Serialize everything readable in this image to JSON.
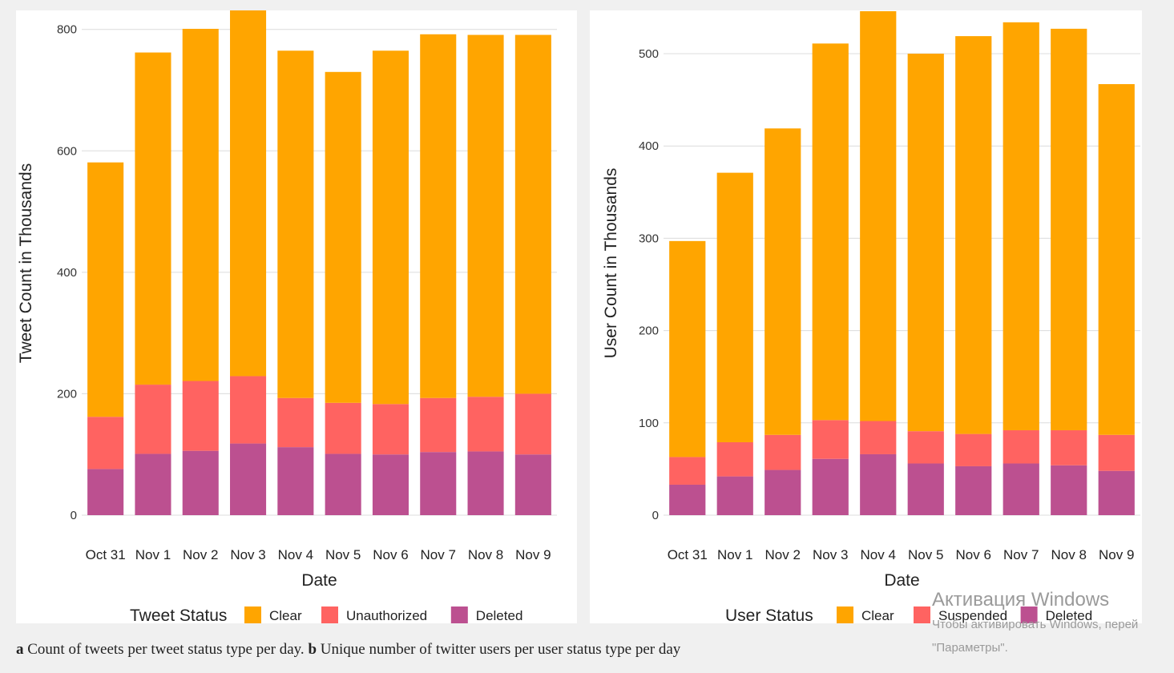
{
  "colors": {
    "clear": "#FFA500",
    "red": "#FF6361",
    "deleted": "#BC5090"
  },
  "caption": {
    "a_letter": "a",
    "a_text": " Count of tweets per tweet status type per day. ",
    "b_letter": "b",
    "b_text": " Unique number of twitter users per user status type per day"
  },
  "watermark": {
    "title": "Активация Windows",
    "line1": "Чтобы активировать Windows, перей",
    "line2": "\"Параметры\"."
  },
  "chart_data": [
    {
      "type": "bar",
      "stacked": true,
      "xlabel": "Date",
      "ylabel": "Tweet Count in Thousands",
      "ylim": [
        0,
        830
      ],
      "yticks": [
        0,
        200,
        400,
        600,
        800
      ],
      "grid": true,
      "legend_position": "bottom",
      "legend_title": "Tweet Status",
      "categories": [
        "Oct 31",
        "Nov 1",
        "Nov 2",
        "Nov 3",
        "Nov 4",
        "Nov 5",
        "Nov 6",
        "Nov 7",
        "Nov 8",
        "Nov 9"
      ],
      "series": [
        {
          "name": "Clear",
          "color_key": "clear",
          "values": [
            419,
            547,
            580,
            604,
            572,
            545,
            582,
            599,
            596,
            591
          ]
        },
        {
          "name": "Unauthorized",
          "color_key": "red",
          "values": [
            86,
            114,
            115,
            111,
            81,
            84,
            83,
            89,
            90,
            100
          ]
        },
        {
          "name": "Deleted",
          "color_key": "deleted",
          "values": [
            76,
            101,
            106,
            118,
            112,
            101,
            100,
            104,
            105,
            100
          ]
        }
      ]
    },
    {
      "type": "bar",
      "stacked": true,
      "xlabel": "Date",
      "ylabel": "User Count in Thousands",
      "ylim": [
        0,
        546
      ],
      "yticks": [
        0,
        100,
        200,
        300,
        400,
        500
      ],
      "grid": true,
      "legend_position": "bottom",
      "legend_title": "User Status",
      "categories": [
        "Oct 31",
        "Nov 1",
        "Nov 2",
        "Nov 3",
        "Nov 4",
        "Nov 5",
        "Nov 6",
        "Nov 7",
        "Nov 8",
        "Nov 9"
      ],
      "series": [
        {
          "name": "Clear",
          "color_key": "clear",
          "values": [
            234,
            292,
            332,
            408,
            444,
            409,
            431,
            442,
            435,
            380
          ]
        },
        {
          "name": "Suspended",
          "color_key": "red",
          "values": [
            30,
            37,
            38,
            42,
            36,
            35,
            35,
            36,
            38,
            39
          ]
        },
        {
          "name": "Deleted",
          "color_key": "deleted",
          "values": [
            33,
            42,
            49,
            61,
            66,
            56,
            53,
            56,
            54,
            48
          ]
        }
      ]
    }
  ]
}
